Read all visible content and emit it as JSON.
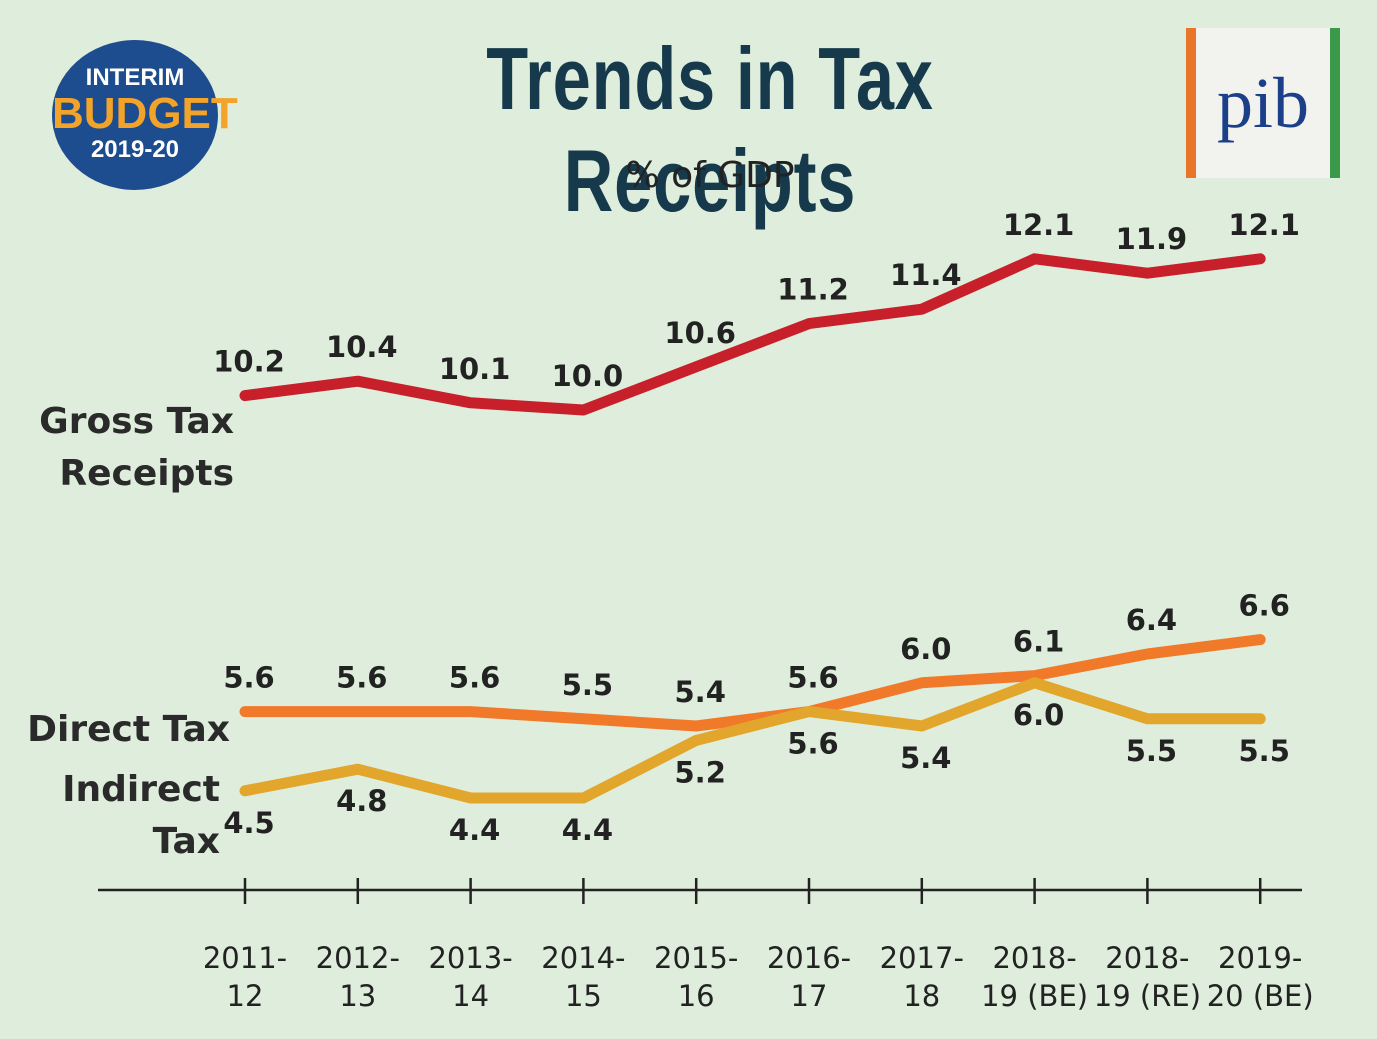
{
  "header": {
    "badge": [
      "INTERIM",
      "BUDGET",
      "2019-20"
    ],
    "logo": "pib"
  },
  "chart_data": {
    "type": "line",
    "title": "Trends in Tax Receipts",
    "subtitle": "% of GDP",
    "categories": [
      [
        "2011-",
        "12"
      ],
      [
        "2012-",
        "13"
      ],
      [
        "2013-",
        "14"
      ],
      [
        "2014-",
        "15"
      ],
      [
        "2015-",
        "16"
      ],
      [
        "2016-",
        "17"
      ],
      [
        "2017-",
        "18"
      ],
      [
        "2018-",
        "19 (BE)"
      ],
      [
        "2018-",
        "19 (RE)"
      ],
      [
        "2019-",
        "20 (BE)"
      ]
    ],
    "series": [
      {
        "name": "Gross Tax Receipts",
        "color": "#c8202a",
        "values": [
          10.2,
          10.4,
          10.1,
          10.0,
          10.6,
          11.2,
          11.4,
          12.1,
          11.9,
          12.1
        ],
        "value_labels": [
          "10.2",
          "10.4",
          "10.1",
          "10.0",
          "10.6",
          "11.2",
          "11.4",
          "12.1",
          "11.9",
          "12.1"
        ]
      },
      {
        "name": "Direct Tax",
        "color": "#f07a2a",
        "values": [
          5.6,
          5.6,
          5.6,
          5.5,
          5.4,
          5.6,
          6.0,
          6.1,
          6.4,
          6.6
        ],
        "value_labels": [
          "5.6",
          "5.6",
          "5.6",
          "5.5",
          "5.4",
          "5.6",
          "6.0",
          "6.1",
          "6.4",
          "6.6"
        ]
      },
      {
        "name": "Indirect Tax",
        "color": "#e2a62c",
        "values": [
          4.5,
          4.8,
          4.4,
          4.4,
          5.2,
          5.6,
          5.4,
          6.0,
          5.5,
          5.5
        ],
        "value_labels": [
          "4.5",
          "4.8",
          "4.4",
          "4.4",
          "5.2",
          "5.6",
          "5.4",
          "6.0",
          "5.5",
          "5.5"
        ]
      }
    ]
  }
}
